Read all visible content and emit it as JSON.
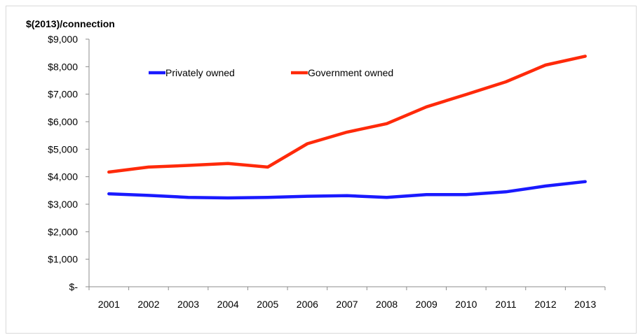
{
  "chart_data": {
    "type": "line",
    "title": "",
    "xlabel": "",
    "ylabel": "$(2013)/connection",
    "categories": [
      "2001",
      "2002",
      "2003",
      "2004",
      "2005",
      "2006",
      "2007",
      "2008",
      "2009",
      "2010",
      "2011",
      "2012",
      "2013"
    ],
    "y_tick_labels": [
      "$-",
      "$1,000",
      "$2,000",
      "$3,000",
      "$4,000",
      "$5,000",
      "$6,000",
      "$7,000",
      "$8,000",
      "$9,000"
    ],
    "ylim": [
      0,
      9000
    ],
    "grid": false,
    "legend_position": "top-left, inside plot",
    "series": [
      {
        "name": "Privately owned",
        "color": "#1a1aff",
        "values": [
          3380,
          3320,
          3250,
          3230,
          3250,
          3290,
          3310,
          3250,
          3350,
          3350,
          3450,
          3660,
          3820
        ]
      },
      {
        "name": "Government owned",
        "color": "#ff2a0a",
        "values": [
          4170,
          4350,
          4410,
          4480,
          4350,
          5200,
          5620,
          5930,
          6540,
          6990,
          7450,
          8060,
          8380
        ]
      }
    ]
  }
}
